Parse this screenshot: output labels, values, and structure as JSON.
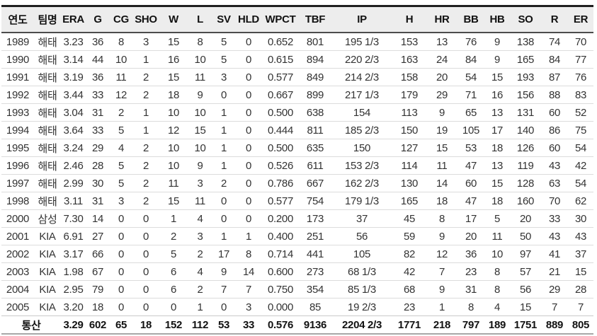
{
  "chart_data": {
    "type": "table",
    "title": "",
    "columns": [
      {
        "key": "year",
        "label": "연도"
      },
      {
        "key": "team",
        "label": "팀명"
      },
      {
        "key": "era",
        "label": "ERA"
      },
      {
        "key": "g",
        "label": "G"
      },
      {
        "key": "cg",
        "label": "CG"
      },
      {
        "key": "sho",
        "label": "SHO"
      },
      {
        "key": "w",
        "label": "W"
      },
      {
        "key": "l",
        "label": "L"
      },
      {
        "key": "sv",
        "label": "SV"
      },
      {
        "key": "hld",
        "label": "HLD"
      },
      {
        "key": "wpct",
        "label": "WPCT"
      },
      {
        "key": "tbf",
        "label": "TBF"
      },
      {
        "key": "ip",
        "label": "IP"
      },
      {
        "key": "h",
        "label": "H"
      },
      {
        "key": "hr",
        "label": "HR"
      },
      {
        "key": "bb",
        "label": "BB"
      },
      {
        "key": "hb",
        "label": "HB"
      },
      {
        "key": "so",
        "label": "SO"
      },
      {
        "key": "r",
        "label": "R"
      },
      {
        "key": "er",
        "label": "ER"
      }
    ],
    "rows": [
      [
        "1989",
        "해태",
        "3.23",
        "36",
        "8",
        "3",
        "15",
        "8",
        "5",
        "0",
        "0.652",
        "801",
        "195 1/3",
        "153",
        "13",
        "76",
        "9",
        "138",
        "74",
        "70"
      ],
      [
        "1990",
        "해태",
        "3.14",
        "44",
        "10",
        "1",
        "16",
        "10",
        "5",
        "0",
        "0.615",
        "894",
        "220 2/3",
        "163",
        "24",
        "84",
        "9",
        "165",
        "84",
        "77"
      ],
      [
        "1991",
        "해태",
        "3.19",
        "36",
        "11",
        "2",
        "15",
        "11",
        "3",
        "0",
        "0.577",
        "849",
        "214 2/3",
        "158",
        "20",
        "54",
        "15",
        "193",
        "87",
        "76"
      ],
      [
        "1992",
        "해태",
        "3.44",
        "33",
        "12",
        "2",
        "18",
        "9",
        "0",
        "0",
        "0.667",
        "899",
        "217 1/3",
        "179",
        "29",
        "71",
        "16",
        "156",
        "88",
        "83"
      ],
      [
        "1993",
        "해태",
        "3.04",
        "31",
        "2",
        "1",
        "10",
        "10",
        "1",
        "0",
        "0.500",
        "638",
        "154",
        "113",
        "9",
        "65",
        "13",
        "131",
        "60",
        "52"
      ],
      [
        "1994",
        "해태",
        "3.64",
        "33",
        "5",
        "1",
        "12",
        "15",
        "1",
        "0",
        "0.444",
        "811",
        "185 2/3",
        "150",
        "19",
        "105",
        "17",
        "140",
        "86",
        "75"
      ],
      [
        "1995",
        "해태",
        "3.24",
        "29",
        "4",
        "2",
        "10",
        "10",
        "1",
        "0",
        "0.500",
        "635",
        "150",
        "127",
        "15",
        "53",
        "18",
        "126",
        "60",
        "54"
      ],
      [
        "1996",
        "해태",
        "2.46",
        "28",
        "5",
        "2",
        "10",
        "9",
        "1",
        "0",
        "0.526",
        "611",
        "153 2/3",
        "114",
        "11",
        "47",
        "13",
        "119",
        "43",
        "42"
      ],
      [
        "1997",
        "해태",
        "2.99",
        "30",
        "5",
        "2",
        "11",
        "3",
        "2",
        "0",
        "0.786",
        "667",
        "162 2/3",
        "130",
        "14",
        "60",
        "15",
        "128",
        "63",
        "54"
      ],
      [
        "1998",
        "해태",
        "3.11",
        "31",
        "3",
        "2",
        "15",
        "11",
        "0",
        "0",
        "0.577",
        "754",
        "179 1/3",
        "165",
        "18",
        "47",
        "18",
        "160",
        "70",
        "62"
      ],
      [
        "2000",
        "삼성",
        "7.30",
        "14",
        "0",
        "0",
        "1",
        "4",
        "0",
        "0",
        "0.200",
        "173",
        "37",
        "45",
        "8",
        "17",
        "5",
        "20",
        "33",
        "30"
      ],
      [
        "2001",
        "KIA",
        "6.91",
        "27",
        "0",
        "0",
        "2",
        "3",
        "1",
        "1",
        "0.400",
        "251",
        "56",
        "59",
        "9",
        "20",
        "11",
        "50",
        "43",
        "43"
      ],
      [
        "2002",
        "KIA",
        "3.17",
        "66",
        "0",
        "0",
        "5",
        "2",
        "17",
        "8",
        "0.714",
        "441",
        "105",
        "82",
        "12",
        "36",
        "10",
        "97",
        "41",
        "37"
      ],
      [
        "2003",
        "KIA",
        "1.98",
        "67",
        "0",
        "0",
        "6",
        "4",
        "9",
        "14",
        "0.600",
        "273",
        "68 1/3",
        "42",
        "7",
        "23",
        "8",
        "57",
        "21",
        "15"
      ],
      [
        "2004",
        "KIA",
        "2.95",
        "79",
        "0",
        "0",
        "6",
        "2",
        "7",
        "7",
        "0.750",
        "354",
        "85 1/3",
        "68",
        "9",
        "31",
        "8",
        "56",
        "29",
        "28"
      ],
      [
        "2005",
        "KIA",
        "3.20",
        "18",
        "0",
        "0",
        "0",
        "1",
        "0",
        "3",
        "0.000",
        "85",
        "19 2/3",
        "23",
        "1",
        "8",
        "4",
        "15",
        "7",
        "7"
      ]
    ],
    "total": {
      "label": "통산",
      "values": [
        "3.29",
        "602",
        "65",
        "18",
        "152",
        "112",
        "53",
        "33",
        "0.576",
        "9136",
        "2204 2/3",
        "1771",
        "218",
        "797",
        "189",
        "1751",
        "889",
        "805"
      ]
    }
  }
}
